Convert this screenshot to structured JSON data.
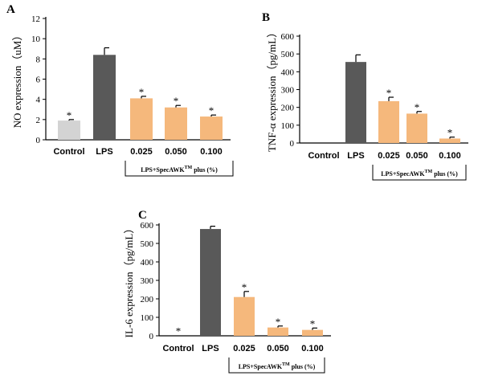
{
  "chart_data": [
    {
      "type": "bar",
      "panel": "A",
      "categories": [
        "Control",
        "LPS",
        "0.025",
        "0.050",
        "0.100"
      ],
      "group_label": "LPS+SpecAWK",
      "group_label_sup": "TM",
      "group_label_tail": " plus (%)",
      "ylabel": "NO expression（uM）",
      "ylim": [
        0,
        12
      ],
      "yticks": [
        0,
        2,
        4,
        6,
        8,
        10,
        12
      ],
      "values": [
        1.9,
        8.4,
        4.1,
        3.2,
        2.3
      ],
      "errors": [
        0.1,
        0.7,
        0.2,
        0.2,
        0.15
      ],
      "significant": [
        true,
        false,
        true,
        true,
        true
      ],
      "colors": [
        "#d3d3d3",
        "#595959",
        "#f5b87c",
        "#f5b87c",
        "#f5b87c"
      ]
    },
    {
      "type": "bar",
      "panel": "B",
      "categories": [
        "Control",
        "LPS",
        "0.025",
        "0.050",
        "0.100"
      ],
      "group_label": "LPS+SpecAWK",
      "group_label_sup": "TM",
      "group_label_tail": " plus (%)",
      "ylabel": "TNF-α expression（pg/mL）",
      "ylim": [
        0,
        600
      ],
      "yticks": [
        0,
        100,
        200,
        300,
        400,
        500,
        600
      ],
      "values": [
        0,
        455,
        235,
        165,
        25
      ],
      "errors": [
        0,
        40,
        22,
        12,
        8
      ],
      "significant": [
        false,
        false,
        true,
        true,
        true
      ],
      "colors": [
        "#d3d3d3",
        "#595959",
        "#f5b87c",
        "#f5b87c",
        "#f5b87c"
      ]
    },
    {
      "type": "bar",
      "panel": "C",
      "categories": [
        "Control",
        "LPS",
        "0.025",
        "0.050",
        "0.100"
      ],
      "group_label": "LPS+SpecAWK",
      "group_label_sup": "TM",
      "group_label_tail": " plus (%)",
      "ylabel": "IL-6 expression（pg/mL）",
      "ylim": [
        0,
        600
      ],
      "yticks": [
        0,
        100,
        200,
        300,
        400,
        500,
        600
      ],
      "values": [
        2,
        578,
        210,
        45,
        32
      ],
      "errors": [
        0,
        15,
        30,
        8,
        10
      ],
      "significant": [
        true,
        false,
        true,
        true,
        true
      ],
      "colors": [
        "#d3d3d3",
        "#595959",
        "#f5b87c",
        "#f5b87c",
        "#f5b87c"
      ]
    }
  ]
}
